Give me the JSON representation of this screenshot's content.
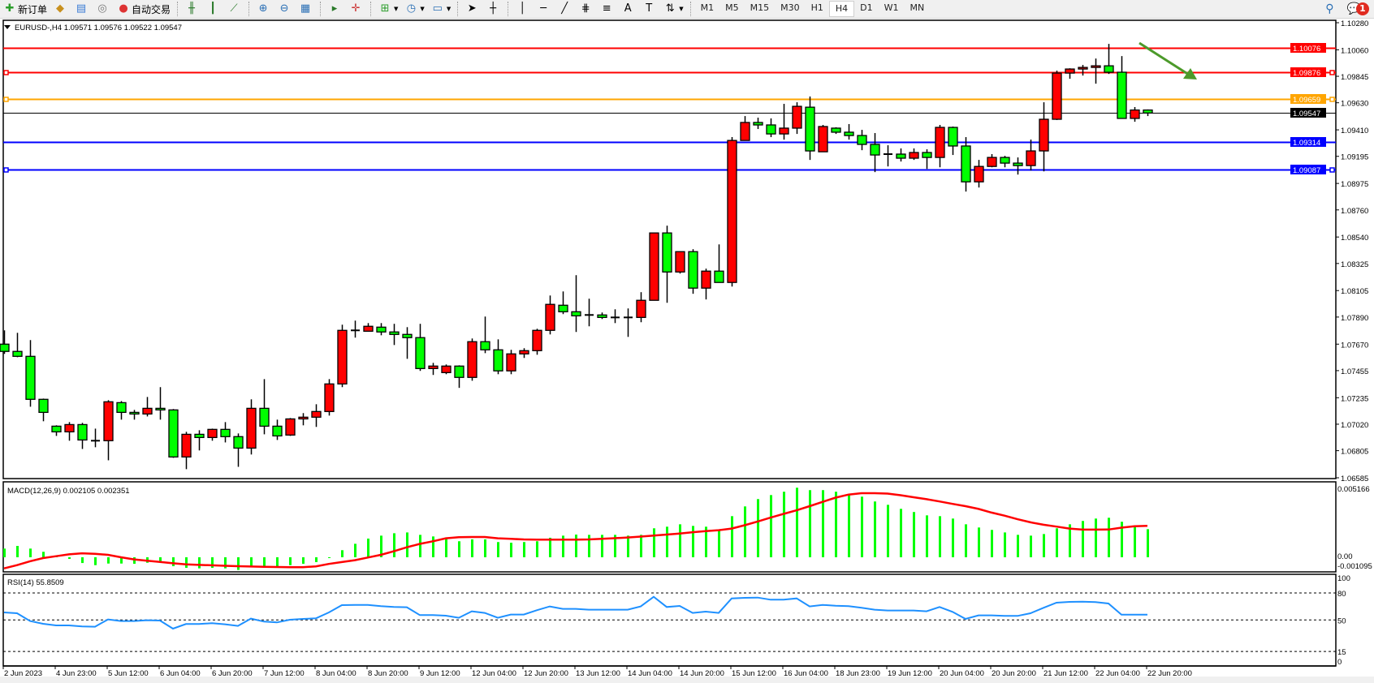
{
  "toolbar": {
    "new_order": "新订单",
    "auto_trading": "自动交易",
    "timeframes": [
      "M1",
      "M5",
      "M15",
      "M30",
      "H1",
      "H4",
      "D1",
      "W1",
      "MN"
    ],
    "active_timeframe": "H4",
    "notification_count": "1",
    "icons": [
      "new-order-icon",
      "navigator-icon",
      "terminal-icon",
      "signals-icon",
      "auto-trading-icon",
      "bar-chart-icon",
      "candlestick-icon",
      "line-chart-icon",
      "zoom-in-icon",
      "zoom-out-icon",
      "tile-windows-icon",
      "chart-shift-icon",
      "autoscroll-icon",
      "indicators-icon",
      "periods-icon",
      "templates-icon",
      "cursor-icon",
      "crosshair-icon",
      "vertical-line-icon",
      "horizontal-line-icon",
      "trendline-icon",
      "fibonacci-icon",
      "fibo-fan-icon",
      "text-icon",
      "text-label-icon",
      "arrows-icon",
      "search-icon",
      "chat-icon"
    ]
  },
  "chart": {
    "header": "EURUSD-,H4  1.09571 1.09576 1.09522 1.09547",
    "macd_label": "MACD(12,26,9) 0.002105 0.002351",
    "rsi_label": "RSI(14) 55.8509",
    "colors": {
      "bull": "#ff0000",
      "bear": "#00ff00",
      "macd_hist": "#00ff00",
      "signal": "#ff0000",
      "rsi": "#1e90ff",
      "arrow": "#4c9a2a"
    }
  },
  "chart_data": {
    "type": "candlestick",
    "symbol": "EURUSD-",
    "timeframe": "H4",
    "ylim": [
      1.06585,
      1.1028
    ],
    "price_ticks": [
      "1.10280",
      "1.10060",
      "1.09845",
      "1.09630",
      "1.09410",
      "1.09195",
      "1.08975",
      "1.08760",
      "1.08540",
      "1.08325",
      "1.08105",
      "1.07890",
      "1.07670",
      "1.07455",
      "1.07235",
      "1.07020",
      "1.06805",
      "1.06585"
    ],
    "time_labels": [
      "2 Jun 2023",
      "4 Jun 23:00",
      "5 Jun 12:00",
      "6 Jun 04:00",
      "6 Jun 20:00",
      "7 Jun 12:00",
      "8 Jun 04:00",
      "8 Jun 20:00",
      "9 Jun 12:00",
      "12 Jun 04:00",
      "12 Jun 20:00",
      "13 Jun 12:00",
      "14 Jun 04:00",
      "14 Jun 20:00",
      "15 Jun 12:00",
      "16 Jun 04:00",
      "18 Jun 23:00",
      "19 Jun 12:00",
      "20 Jun 04:00",
      "20 Jun 20:00",
      "21 Jun 12:00",
      "22 Jun 04:00",
      "22 Jun 20:00"
    ],
    "ohlc": [
      [
        1.0767,
        1.07782,
        1.07591,
        1.07611
      ],
      [
        1.07611,
        1.07762,
        1.07564,
        1.07571
      ],
      [
        1.07571,
        1.07703,
        1.07162,
        1.07222
      ],
      [
        1.07222,
        1.07228,
        1.07044,
        1.07116
      ],
      [
        1.07004,
        1.07011,
        1.06925,
        1.06958
      ],
      [
        1.06958,
        1.07037,
        1.06886,
        1.07017
      ],
      [
        1.07017,
        1.07031,
        1.06819,
        1.06892
      ],
      [
        1.06886,
        1.06984,
        1.06833,
        1.0688
      ],
      [
        1.06886,
        1.07215,
        1.06727,
        1.07202
      ],
      [
        1.07195,
        1.07208,
        1.07057,
        1.07116
      ],
      [
        1.07116,
        1.07136,
        1.07057,
        1.07103
      ],
      [
        1.07103,
        1.07241,
        1.07083,
        1.07149
      ],
      [
        1.07149,
        1.07321,
        1.07057,
        1.07136
      ],
      [
        1.07136,
        1.07143,
        1.06747,
        1.06754
      ],
      [
        1.06754,
        1.06958,
        1.06655,
        1.06938
      ],
      [
        1.06938,
        1.06971,
        1.06807,
        1.06912
      ],
      [
        1.06912,
        1.06984,
        1.06886,
        1.06978
      ],
      [
        1.06978,
        1.07037,
        1.06872,
        1.06919
      ],
      [
        1.06919,
        1.06945,
        1.06674,
        1.06826
      ],
      [
        1.06826,
        1.07222,
        1.06774,
        1.07149
      ],
      [
        1.07149,
        1.07386,
        1.06938,
        1.07004
      ],
      [
        1.07004,
        1.07057,
        1.06892,
        1.06925
      ],
      [
        1.06932,
        1.0707,
        1.06925,
        1.07063
      ],
      [
        1.07063,
        1.0711,
        1.07011,
        1.07077
      ],
      [
        1.07077,
        1.07182,
        1.06998,
        1.07123
      ],
      [
        1.07123,
        1.07386,
        1.0709,
        1.07347
      ],
      [
        1.07347,
        1.07828,
        1.07321,
        1.07782
      ],
      [
        1.07782,
        1.07861,
        1.07723,
        1.07782
      ],
      [
        1.07775,
        1.07841,
        1.07775,
        1.07815
      ],
      [
        1.07808,
        1.07841,
        1.07742,
        1.07769
      ],
      [
        1.07769,
        1.07835,
        1.07663,
        1.07749
      ],
      [
        1.07749,
        1.07808,
        1.07551,
        1.07723
      ],
      [
        1.07723,
        1.07835,
        1.07453,
        1.07472
      ],
      [
        1.07472,
        1.07518,
        1.0742,
        1.07492
      ],
      [
        1.07439,
        1.07505,
        1.07426,
        1.07492
      ],
      [
        1.07492,
        1.07498,
        1.07315,
        1.074
      ],
      [
        1.074,
        1.07716,
        1.07373,
        1.0769
      ],
      [
        1.0769,
        1.07894,
        1.07597,
        1.07624
      ],
      [
        1.07624,
        1.07709,
        1.07426,
        1.07453
      ],
      [
        1.07453,
        1.07624,
        1.07426,
        1.07591
      ],
      [
        1.07591,
        1.07637,
        1.07558,
        1.07617
      ],
      [
        1.07617,
        1.07795,
        1.07584,
        1.07782
      ],
      [
        1.07782,
        1.08065,
        1.07749,
        1.07993
      ],
      [
        1.07986,
        1.08098,
        1.07914,
        1.07933
      ],
      [
        1.07933,
        1.0823,
        1.07769,
        1.079
      ],
      [
        1.07907,
        1.08039,
        1.07815,
        1.07907
      ],
      [
        1.07907,
        1.07927,
        1.07874,
        1.07887
      ],
      [
        1.07887,
        1.07953,
        1.07841,
        1.07887
      ],
      [
        1.07887,
        1.0796,
        1.07729,
        1.07887
      ],
      [
        1.07887,
        1.08092,
        1.07848,
        1.08026
      ],
      [
        1.08026,
        1.08573,
        1.08026,
        1.08573
      ],
      [
        1.08573,
        1.08632,
        1.08006,
        1.08256
      ],
      [
        1.08256,
        1.08421,
        1.08243,
        1.08421
      ],
      [
        1.08421,
        1.08441,
        1.08079,
        1.08125
      ],
      [
        1.08125,
        1.08283,
        1.08033,
        1.08263
      ],
      [
        1.08263,
        1.0848,
        1.08171,
        1.08171
      ],
      [
        1.08171,
        1.09351,
        1.08138,
        1.09324
      ],
      [
        1.09324,
        1.09522,
        1.09324,
        1.0947
      ],
      [
        1.0947,
        1.09509,
        1.09417,
        1.0945
      ],
      [
        1.0945,
        1.09503,
        1.09351,
        1.09377
      ],
      [
        1.09377,
        1.09621,
        1.09331,
        1.09424
      ],
      [
        1.09424,
        1.09634,
        1.09377,
        1.09601
      ],
      [
        1.09594,
        1.09681,
        1.09166,
        1.09239
      ],
      [
        1.09232,
        1.0945,
        1.09232,
        1.09437
      ],
      [
        1.09424,
        1.09431,
        1.09377,
        1.09391
      ],
      [
        1.09391,
        1.09457,
        1.09331,
        1.09364
      ],
      [
        1.09364,
        1.0941,
        1.09245,
        1.09292
      ],
      [
        1.09292,
        1.09384,
        1.09067,
        1.09206
      ],
      [
        1.09213,
        1.09285,
        1.09113,
        1.09213
      ],
      [
        1.09213,
        1.09259,
        1.09153,
        1.0918
      ],
      [
        1.0918,
        1.09259,
        1.09166,
        1.09226
      ],
      [
        1.09226,
        1.09252,
        1.09093,
        1.09186
      ],
      [
        1.09186,
        1.0945,
        1.09106,
        1.0943
      ],
      [
        1.0943,
        1.09437,
        1.09206,
        1.09279
      ],
      [
        1.09279,
        1.09351,
        1.08909,
        1.08988
      ],
      [
        1.08988,
        1.09166,
        1.08942,
        1.09113
      ],
      [
        1.09113,
        1.09213,
        1.09106,
        1.09186
      ],
      [
        1.09186,
        1.09199,
        1.09106,
        1.0914
      ],
      [
        1.0914,
        1.09186,
        1.09047,
        1.0912
      ],
      [
        1.0912,
        1.09331,
        1.0908,
        1.09239
      ],
      [
        1.09239,
        1.09634,
        1.09073,
        1.09496
      ],
      [
        1.09496,
        1.09891,
        1.0949,
        1.09871
      ],
      [
        1.09871,
        1.0991,
        1.09825,
        1.09904
      ],
      [
        1.09904,
        1.09937,
        1.09851,
        1.09917
      ],
      [
        1.09917,
        1.09989,
        1.09785,
        1.0993
      ],
      [
        1.0993,
        1.10108,
        1.09864,
        1.09878
      ],
      [
        1.09878,
        1.10009,
        1.095,
        1.09503
      ],
      [
        1.09503,
        1.09595,
        1.09476,
        1.09571
      ],
      [
        1.09571,
        1.09576,
        1.09522,
        1.09547
      ]
    ],
    "horizontal_lines": [
      {
        "price": "1.10076",
        "color": "#ff0000",
        "handle": false
      },
      {
        "price": "1.09876",
        "color": "#ff0000",
        "handle": true
      },
      {
        "price": "1.09659",
        "color": "#ffa500",
        "handle": true
      },
      {
        "price": "1.09547",
        "color": "#000000",
        "handle": false,
        "current": true
      },
      {
        "price": "1.09314",
        "color": "#0000ff",
        "handle": false
      },
      {
        "price": "1.09087",
        "color": "#0000ff",
        "handle": true
      }
    ],
    "macd": {
      "ticks": [
        "0.005166",
        "0.00",
        "-0.001095"
      ],
      "ylim": [
        -0.001095,
        0.005166
      ],
      "histogram": [
        0.00065,
        0.00085,
        0.00065,
        0.00041,
        0.0001,
        -0.00012,
        -0.00043,
        -0.00059,
        -0.00047,
        -0.00047,
        -0.00049,
        -0.00041,
        -0.00036,
        -0.00067,
        -0.00079,
        -0.00083,
        -0.00079,
        -0.00083,
        -0.00095,
        -0.00071,
        -0.00073,
        -0.00073,
        -0.00059,
        -0.00049,
        -0.00036,
        -4e-05,
        0.00053,
        0.00101,
        0.0014,
        0.00162,
        0.0018,
        0.00186,
        0.00168,
        0.00156,
        0.0014,
        0.0012,
        0.00134,
        0.00134,
        0.00114,
        0.00109,
        0.00114,
        0.0012,
        0.00146,
        0.00162,
        0.0017,
        0.00168,
        0.00168,
        0.00168,
        0.00162,
        0.00168,
        0.00217,
        0.00229,
        0.00247,
        0.00235,
        0.00229,
        0.00205,
        0.00308,
        0.00381,
        0.00436,
        0.00466,
        0.00491,
        0.00521,
        0.00503,
        0.00503,
        0.00491,
        0.00472,
        0.00454,
        0.00418,
        0.00393,
        0.00363,
        0.00339,
        0.00314,
        0.00308,
        0.0029,
        0.00247,
        0.00223,
        0.00205,
        0.00186,
        0.00168,
        0.00162,
        0.00174,
        0.00217,
        0.00247,
        0.00272,
        0.0029,
        0.00296,
        0.00266,
        0.00235,
        0.002105
      ],
      "signal": [
        -0.00083,
        -0.00059,
        -0.0003,
        -6e-05,
        8e-05,
        0.00022,
        0.0003,
        0.00026,
        0.00018,
        0,
        -0.00016,
        -0.00026,
        -0.00035,
        -0.00045,
        -0.00053,
        -0.00057,
        -0.0006,
        -0.00064,
        -0.00067,
        -0.00069,
        -0.00071,
        -0.00073,
        -0.00074,
        -0.00075,
        -0.00068,
        -0.0005,
        -0.00036,
        -0.00022,
        -2e-05,
        0.00018,
        0.00045,
        0.00075,
        0.001,
        0.0012,
        0.00142,
        0.0015,
        0.00152,
        0.00152,
        0.00142,
        0.00138,
        0.00134,
        0.00132,
        0.00132,
        0.00132,
        0.00132,
        0.00134,
        0.00138,
        0.00143,
        0.00148,
        0.00155,
        0.00163,
        0.0017,
        0.00178,
        0.00188,
        0.00196,
        0.00203,
        0.00215,
        0.0024,
        0.00268,
        0.00297,
        0.00325,
        0.00352,
        0.00383,
        0.00415,
        0.00447,
        0.0047,
        0.0048,
        0.0048,
        0.00477,
        0.00465,
        0.0045,
        0.00435,
        0.00418,
        0.004,
        0.00383,
        0.00362,
        0.00335,
        0.00312,
        0.00285,
        0.00262,
        0.00244,
        0.0023,
        0.00215,
        0.00207,
        0.00207,
        0.00208,
        0.00222,
        0.00233,
        0.002351
      ]
    },
    "rsi": {
      "ticks": [
        "100",
        "80",
        "50",
        "15",
        "0"
      ],
      "levels": [
        80,
        50,
        15
      ],
      "values": [
        58.4,
        57.5,
        48.8,
        45.8,
        44,
        44,
        42.8,
        42.5,
        50.6,
        48.8,
        48.8,
        49.7,
        49.4,
        40.4,
        45.5,
        45.5,
        46.4,
        45.2,
        43.4,
        51.5,
        48.2,
        47.3,
        50.3,
        51.2,
        51.8,
        58.4,
        66.5,
        66.8,
        66.8,
        65.3,
        64.4,
        64.1,
        55.4,
        55.4,
        54.8,
        52.4,
        59.6,
        57.8,
        52.4,
        56,
        56,
        60.8,
        65,
        62.3,
        62.3,
        61.4,
        61.4,
        61.4,
        61.4,
        65,
        75.8,
        64.4,
        65.6,
        57.8,
        59.3,
        57.8,
        74,
        74.6,
        74.9,
        72.5,
        72.5,
        74,
        65,
        66.8,
        65.9,
        65.3,
        63.5,
        61.4,
        60.5,
        60.5,
        60.5,
        59.6,
        64.4,
        59,
        51.2,
        55.1,
        55.1,
        54.5,
        54.5,
        57.5,
        63.5,
        69.2,
        70.1,
        70.4,
        69.8,
        68.3,
        55.85,
        55.85,
        55.85
      ]
    }
  }
}
